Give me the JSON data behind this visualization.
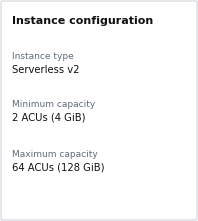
{
  "title": "Instance configuration",
  "fields": [
    {
      "label": "Instance type",
      "value": "Serverless v2"
    },
    {
      "label": "Minimum capacity",
      "value": "2 ACUs (4 GiB)"
    },
    {
      "label": "Maximum capacity",
      "value": "64 ACUs (128 GiB)"
    }
  ],
  "background_color": "#ffffff",
  "border_color": "#d1d5db",
  "title_color": "#0f1111",
  "label_color": "#5f6b7a",
  "value_color": "#0f1111",
  "title_fontsize": 8.0,
  "label_fontsize": 6.5,
  "value_fontsize": 7.2,
  "fig_width": 1.98,
  "fig_height": 2.21,
  "dpi": 100
}
